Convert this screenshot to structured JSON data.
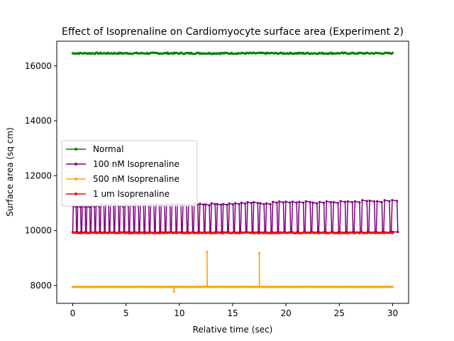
{
  "chart_data": {
    "type": "line",
    "title": "Effect of Isoprenaline on Cardiomyocyte surface area (Experiment 2)",
    "xlabel": "Relative time (sec)",
    "ylabel": "Surface area (sq cm)",
    "xlim": [
      -1.5,
      31.5
    ],
    "ylim": [
      7350,
      16900
    ],
    "xticks": [
      0,
      5,
      10,
      15,
      20,
      25,
      30
    ],
    "yticks": [
      8000,
      10000,
      12000,
      14000,
      16000
    ],
    "grid": false,
    "legend_position": "center-left",
    "series": [
      {
        "name": "Normal",
        "color": "#008000",
        "pattern": "flat",
        "x_start": 0,
        "x_end": 30,
        "baseline": 16460,
        "noise": 25
      },
      {
        "name": "100 nM Isoprenaline",
        "color": "#800080",
        "pattern": "oscillating",
        "x_start": 0,
        "x_end": 30,
        "low": 9950,
        "high_start": 10900,
        "high_end": 11100,
        "period_start": 0.42,
        "period_end": 0.72
      },
      {
        "name": "500 nM Isoprenaline",
        "color": "#ffa500",
        "pattern": "flat_with_spikes",
        "x_start": 0,
        "x_end": 30,
        "baseline": 7950,
        "spikes": [
          {
            "x": 9.5,
            "peak": 7780
          },
          {
            "x": 12.6,
            "peak": 9220
          },
          {
            "x": 17.5,
            "peak": 9180
          }
        ]
      },
      {
        "name": "1 um Isoprenaline",
        "color": "#ff0000",
        "pattern": "flat",
        "x_start": 0,
        "x_end": 30,
        "baseline": 9920,
        "noise": 15
      }
    ]
  }
}
